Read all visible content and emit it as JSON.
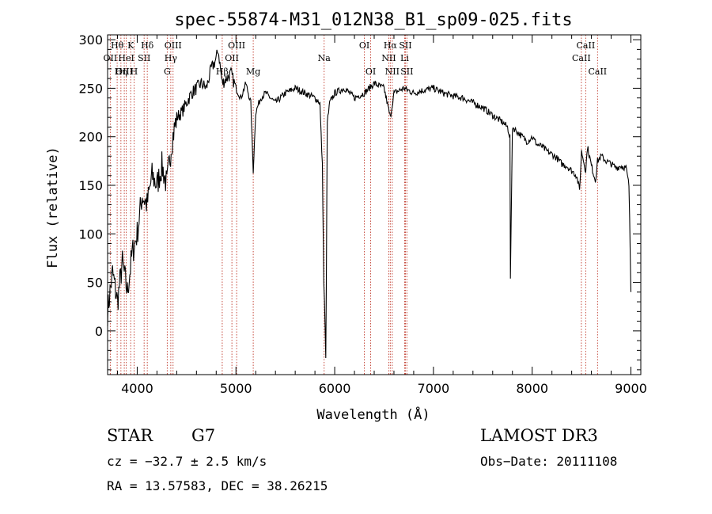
{
  "chart_data": {
    "type": "line",
    "title": "spec-55874-M31_012N38_B1_sp09-025.fits",
    "xlabel": "Wavelength (Å)",
    "ylabel": "Flux (relative)",
    "xlim": [
      3700,
      9100
    ],
    "ylim": [
      -45,
      305
    ],
    "xticks": [
      4000,
      5000,
      6000,
      7000,
      8000,
      9000
    ],
    "yticks": [
      0,
      50,
      100,
      150,
      200,
      250,
      300
    ],
    "series": [
      {
        "name": "flux",
        "x": [
          3700,
          3750,
          3800,
          3850,
          3900,
          3950,
          4000,
          4050,
          4100,
          4150,
          4200,
          4250,
          4300,
          4350,
          4400,
          4450,
          4500,
          4550,
          4600,
          4650,
          4700,
          4750,
          4800,
          4820,
          4861,
          4900,
          4950,
          5000,
          5050,
          5100,
          5150,
          5175,
          5200,
          5250,
          5300,
          5400,
          5500,
          5600,
          5700,
          5800,
          5850,
          5875,
          5890,
          5896,
          5910,
          5925,
          5950,
          6000,
          6100,
          6200,
          6300,
          6400,
          6500,
          6563,
          6600,
          6700,
          6800,
          6900,
          7000,
          7100,
          7200,
          7300,
          7400,
          7500,
          7600,
          7700,
          7750,
          7775,
          7780,
          7800,
          7850,
          7900,
          7950,
          8000,
          8050,
          8100,
          8150,
          8200,
          8250,
          8300,
          8350,
          8400,
          8450,
          8480,
          8500,
          8542,
          8560,
          8600,
          8640,
          8662,
          8700,
          8750,
          8800,
          8850,
          8900,
          8950,
          8980,
          9000
        ],
        "values": [
          20,
          60,
          30,
          70,
          40,
          80,
          100,
          140,
          130,
          160,
          150,
          170,
          150,
          195,
          220,
          225,
          235,
          245,
          250,
          255,
          250,
          270,
          280,
          290,
          255,
          260,
          265,
          250,
          240,
          255,
          235,
          165,
          225,
          240,
          245,
          235,
          245,
          250,
          245,
          240,
          235,
          170,
          50,
          30,
          -30,
          215,
          235,
          245,
          250,
          240,
          245,
          255,
          250,
          220,
          245,
          250,
          245,
          248,
          250,
          245,
          242,
          240,
          235,
          230,
          222,
          215,
          210,
          200,
          55,
          210,
          205,
          200,
          195,
          200,
          192,
          190,
          185,
          182,
          178,
          172,
          170,
          165,
          160,
          145,
          185,
          165,
          190,
          170,
          155,
          175,
          180,
          175,
          172,
          168,
          170,
          168,
          150,
          40
        ]
      }
    ],
    "spectral_lines": [
      {
        "label": "Hθ",
        "x": 3797,
        "row": 1
      },
      {
        "label": "OII",
        "x": 3727,
        "row": 2
      },
      {
        "label": "OIII",
        "x": 3869,
        "row": 3
      },
      {
        "label": "K",
        "x": 3934,
        "row": 1
      },
      {
        "label": "HeI",
        "x": 3889,
        "row": 2
      },
      {
        "label": "Hη",
        "x": 3835,
        "row": 3
      },
      {
        "label": "H",
        "x": 3968,
        "row": 3
      },
      {
        "label": "SII",
        "x": 4070,
        "row": 2
      },
      {
        "label": "Hδ",
        "x": 4102,
        "row": 1
      },
      {
        "label": "OIII",
        "x": 4363,
        "row": 1
      },
      {
        "label": "Hγ",
        "x": 4340,
        "row": 2
      },
      {
        "label": "G",
        "x": 4304,
        "row": 3
      },
      {
        "label": "OIII",
        "x": 5007,
        "row": 1
      },
      {
        "label": "OII",
        "x": 4959,
        "row": 2
      },
      {
        "label": "Hβ",
        "x": 4861,
        "row": 3
      },
      {
        "label": "Mg",
        "x": 5175,
        "row": 3
      },
      {
        "label": "Na",
        "x": 5893,
        "row": 2
      },
      {
        "label": "OI",
        "x": 6300,
        "row": 1
      },
      {
        "label": "OI",
        "x": 6364,
        "row": 3
      },
      {
        "label": "Hα",
        "x": 6563,
        "row": 1
      },
      {
        "label": "SII",
        "x": 6716,
        "row": 1
      },
      {
        "label": "NII",
        "x": 6548,
        "row": 2
      },
      {
        "label": "Li",
        "x": 6708,
        "row": 2
      },
      {
        "label": "NII",
        "x": 6583,
        "row": 3
      },
      {
        "label": "SII",
        "x": 6731,
        "row": 3
      },
      {
        "label": "CaII",
        "x": 8542,
        "row": 1
      },
      {
        "label": "CaII",
        "x": 8498,
        "row": 2
      },
      {
        "label": "CaII",
        "x": 8662,
        "row": 3
      }
    ]
  },
  "info": {
    "class_label": "STAR",
    "subclass": "G7",
    "survey": "LAMOST DR3",
    "cz": "cz = −32.7 ± 2.5 km/s",
    "obs_date": "Obs−Date: 20111108",
    "coords": "RA =  13.57583, DEC =  38.26215"
  }
}
